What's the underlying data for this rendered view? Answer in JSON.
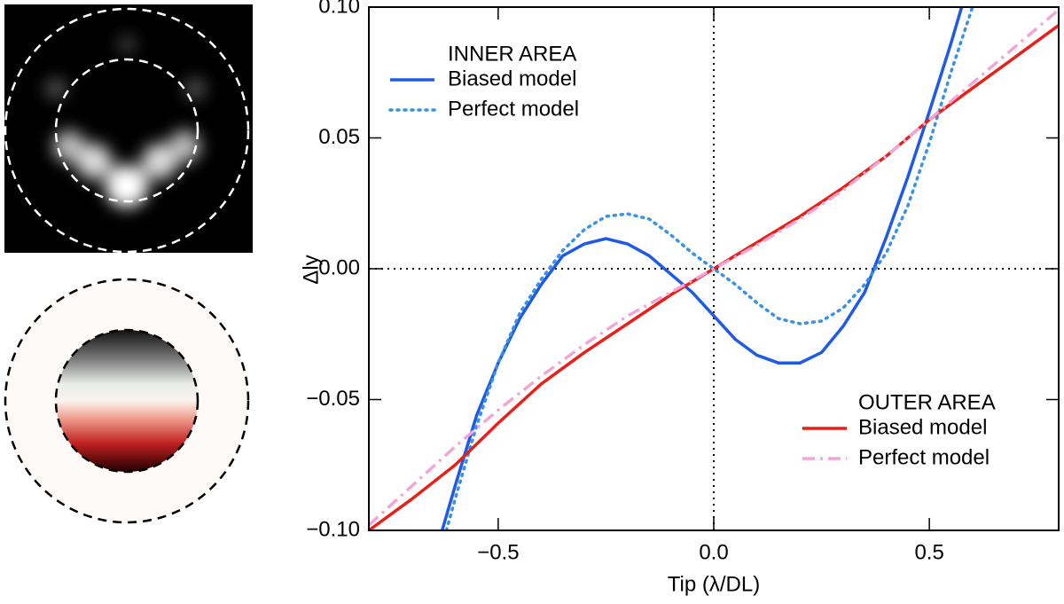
{
  "chart_data": {
    "type": "line",
    "xlabel": "Tip (λ/DL)",
    "ylabel": "Δly",
    "xlim": [
      -0.8,
      0.8
    ],
    "ylim": [
      -0.1,
      0.1
    ],
    "xticks": [
      {
        "value": -0.5,
        "label": "−0.5"
      },
      {
        "value": 0,
        "label": "0.0"
      },
      {
        "value": 0.5,
        "label": "0.5"
      }
    ],
    "yticks": [
      {
        "value": -0.1,
        "label": "−0.10"
      },
      {
        "value": -0.05,
        "label": "−0.05"
      },
      {
        "value": 0,
        "label": "0.00"
      },
      {
        "value": 0.05,
        "label": "0.05"
      },
      {
        "value": 0.1,
        "label": "0.10"
      }
    ],
    "hlines": [
      0
    ],
    "vlines": [
      0
    ],
    "groups": [
      {
        "name": "INNER AREA",
        "series": [
          {
            "name": "Biased model",
            "color": "#1f5ae6",
            "dash": "solid",
            "x": [
              -0.63,
              -0.6,
              -0.55,
              -0.5,
              -0.45,
              -0.4,
              -0.35,
              -0.3,
              -0.25,
              -0.2,
              -0.15,
              -0.1,
              -0.05,
              0,
              0.05,
              0.1,
              0.15,
              0.2,
              0.25,
              0.3,
              0.35,
              0.4,
              0.45,
              0.5,
              0.55,
              0.575
            ],
            "values": [
              -0.1,
              -0.083,
              -0.056,
              -0.036,
              -0.019,
              -0.006,
              0.005,
              0.0095,
              0.0115,
              0.0095,
              0.005,
              -0.002,
              -0.009,
              -0.018,
              -0.027,
              -0.033,
              -0.036,
              -0.036,
              -0.032,
              -0.022,
              -0.009,
              0.012,
              0.035,
              0.06,
              0.086,
              0.1
            ]
          },
          {
            "name": "Perfect model",
            "color": "#3a92e4",
            "dash": "dot",
            "x": [
              -0.62,
              -0.6,
              -0.55,
              -0.5,
              -0.45,
              -0.4,
              -0.35,
              -0.3,
              -0.25,
              -0.2,
              -0.15,
              -0.1,
              -0.05,
              0,
              0.05,
              0.1,
              0.15,
              0.2,
              0.25,
              0.3,
              0.35,
              0.4,
              0.45,
              0.5,
              0.55,
              0.6
            ],
            "values": [
              -0.1,
              -0.088,
              -0.06,
              -0.036,
              -0.017,
              -0.004,
              0.007,
              0.015,
              0.02,
              0.021,
              0.019,
              0.013,
              0.006,
              0,
              -0.006,
              -0.013,
              -0.019,
              -0.021,
              -0.02,
              -0.015,
              -0.006,
              0.006,
              0.024,
              0.048,
              0.075,
              0.1
            ]
          }
        ]
      },
      {
        "name": "OUTER AREA",
        "series": [
          {
            "name": "Biased model",
            "color": "#e8201a",
            "dash": "solid",
            "x": [
              -0.8,
              -0.7,
              -0.6,
              -0.5,
              -0.4,
              -0.3,
              -0.2,
              -0.1,
              0,
              0.1,
              0.2,
              0.3,
              0.4,
              0.5,
              0.6,
              0.7,
              0.8
            ],
            "values": [
              -0.1,
              -0.088,
              -0.075,
              -0.059,
              -0.044,
              -0.032,
              -0.021,
              -0.01,
              0,
              0.01,
              0.02,
              0.031,
              0.043,
              0.057,
              0.069,
              0.081,
              0.093
            ]
          },
          {
            "name": "Perfect model",
            "color": "#f2a6d6",
            "dash": "dashdot",
            "x": [
              -0.8,
              -0.7,
              -0.6,
              -0.5,
              -0.4,
              -0.3,
              -0.2,
              -0.1,
              0,
              0.1,
              0.2,
              0.3,
              0.4,
              0.5,
              0.6,
              0.7,
              0.8
            ],
            "values": [
              -0.098,
              -0.083,
              -0.068,
              -0.054,
              -0.041,
              -0.029,
              -0.018,
              -0.009,
              0,
              0.009,
              0.019,
              0.03,
              0.043,
              0.057,
              0.071,
              0.085,
              0.099
            ]
          }
        ]
      }
    ]
  }
}
